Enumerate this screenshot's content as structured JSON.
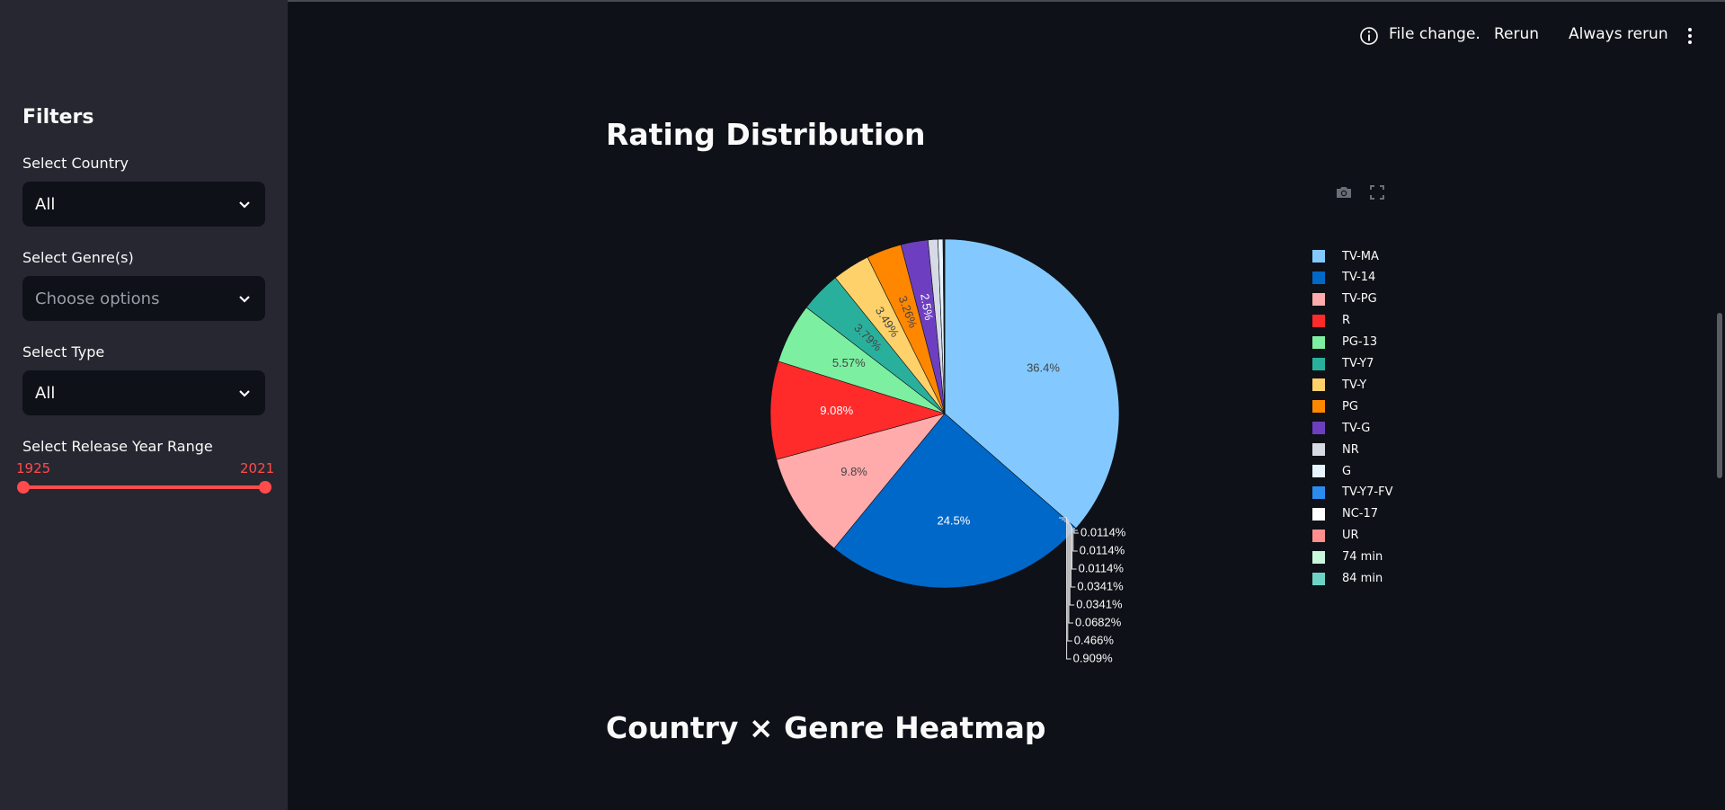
{
  "header": {
    "status_text": "File change.",
    "rerun_label": "Rerun",
    "always_rerun_label": "Always rerun"
  },
  "sidebar": {
    "title": "Filters",
    "country": {
      "label": "Select Country",
      "value": "All"
    },
    "genre": {
      "label": "Select Genre(s)",
      "placeholder": "Choose options"
    },
    "type": {
      "label": "Select Type",
      "value": "All"
    },
    "year": {
      "label": "Select Release Year Range",
      "min": "1925",
      "max": "2021"
    }
  },
  "main": {
    "section1_title": "Rating Distribution",
    "section2_title": "Country × Genre Heatmap"
  },
  "chart_data": {
    "type": "pie",
    "categories": [
      "TV-MA",
      "TV-14",
      "TV-PG",
      "R",
      "PG-13",
      "TV-Y7",
      "TV-Y",
      "PG",
      "TV-G",
      "NR",
      "G",
      "TV-Y7-FV",
      "NC-17",
      "UR",
      "74 min",
      "84 min"
    ],
    "values": [
      36.4,
      24.5,
      9.8,
      9.08,
      5.57,
      3.79,
      3.49,
      3.26,
      2.5,
      0.909,
      0.466,
      0.0682,
      0.0341,
      0.0341,
      0.0114,
      0.0114
    ],
    "labels": [
      "36.4%",
      "24.5%",
      "9.8%",
      "9.08%",
      "5.57%",
      "3.79%",
      "3.49%",
      "3.26%",
      "2.5%",
      "0.909%",
      "0.466%",
      "0.0682%",
      "0.0341%",
      "0.0341%",
      "0.0114%",
      "0.0114%"
    ],
    "extra_outside_labels": [
      "0.0114%"
    ],
    "colors": [
      "#83c9ff",
      "#0068c9",
      "#ffabab",
      "#ff2b2b",
      "#7defa1",
      "#29b09d",
      "#ffd16a",
      "#ff8700",
      "#6d3fc0",
      "#d5dae5",
      "#e8f4ff",
      "#2a8cf0",
      "#ffffff",
      "#ff8f8f",
      "#c9f7dc",
      "#6ed3c4"
    ],
    "legend_position": "right"
  }
}
